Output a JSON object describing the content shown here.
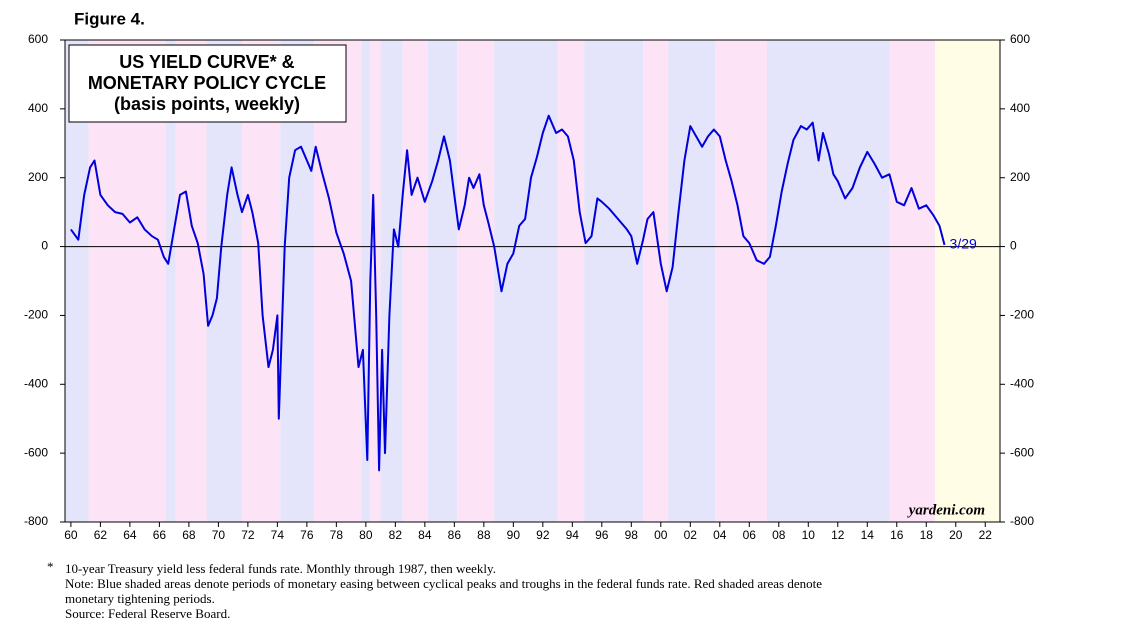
{
  "chart_data": {
    "type": "line",
    "figure_label": "Figure 4.",
    "title_lines": [
      "US YIELD CURVE* &",
      "MONETARY POLICY CYCLE",
      "(basis points, weekly)"
    ],
    "source_tag": "yardeni.com",
    "end_label": "3/29",
    "footnote_marker": "*",
    "footnote_lines": [
      "10-year Treasury yield less federal funds rate. Monthly through 1987, then weekly.",
      "Note: Blue shaded areas denote periods of monetary easing between cyclical peaks and troughs in the federal funds rate. Red shaded areas denote",
      "monetary tightening periods.",
      "Source: Federal Reserve Board."
    ],
    "xlim": [
      1959.6,
      2023
    ],
    "xticks": [
      {
        "value": 1960,
        "label": "60"
      },
      {
        "value": 1962,
        "label": "62"
      },
      {
        "value": 1964,
        "label": "64"
      },
      {
        "value": 1966,
        "label": "66"
      },
      {
        "value": 1968,
        "label": "68"
      },
      {
        "value": 1970,
        "label": "70"
      },
      {
        "value": 1972,
        "label": "72"
      },
      {
        "value": 1974,
        "label": "74"
      },
      {
        "value": 1976,
        "label": "76"
      },
      {
        "value": 1978,
        "label": "78"
      },
      {
        "value": 1980,
        "label": "80"
      },
      {
        "value": 1982,
        "label": "82"
      },
      {
        "value": 1984,
        "label": "84"
      },
      {
        "value": 1986,
        "label": "86"
      },
      {
        "value": 1988,
        "label": "88"
      },
      {
        "value": 1990,
        "label": "90"
      },
      {
        "value": 1992,
        "label": "92"
      },
      {
        "value": 1994,
        "label": "94"
      },
      {
        "value": 1996,
        "label": "96"
      },
      {
        "value": 1998,
        "label": "98"
      },
      {
        "value": 2000,
        "label": "00"
      },
      {
        "value": 2002,
        "label": "02"
      },
      {
        "value": 2004,
        "label": "04"
      },
      {
        "value": 2006,
        "label": "06"
      },
      {
        "value": 2008,
        "label": "08"
      },
      {
        "value": 2010,
        "label": "10"
      },
      {
        "value": 2012,
        "label": "12"
      },
      {
        "value": 2014,
        "label": "14"
      },
      {
        "value": 2016,
        "label": "16"
      },
      {
        "value": 2018,
        "label": "18"
      },
      {
        "value": 2020,
        "label": "20"
      },
      {
        "value": 2022,
        "label": "22"
      }
    ],
    "ylim": [
      -800,
      600
    ],
    "yticks": [
      -800,
      -600,
      -400,
      -200,
      0,
      200,
      400,
      600
    ],
    "reference_line": 0,
    "easing_color": "#e4e4fa",
    "tightening_color": "#fce4f6",
    "future_color": "#fffde6",
    "easing_periods": [
      [
        1959.6,
        1961.2
      ],
      [
        1966.4,
        1967.1
      ],
      [
        1969.2,
        1971.6
      ],
      [
        1974.2,
        1976.5
      ],
      [
        1979.7,
        1980.3
      ],
      [
        1981.0,
        1982.5
      ],
      [
        1984.2,
        1986.2
      ],
      [
        1988.7,
        1993.0
      ],
      [
        1994.8,
        1998.8
      ],
      [
        2000.5,
        2003.7
      ],
      [
        2007.2,
        2015.5
      ]
    ],
    "tightening_periods": [
      [
        1961.2,
        1966.4
      ],
      [
        1967.1,
        1969.2
      ],
      [
        1971.6,
        1974.2
      ],
      [
        1976.5,
        1979.7
      ],
      [
        1980.3,
        1981.0
      ],
      [
        1982.5,
        1984.2
      ],
      [
        1986.2,
        1988.7
      ],
      [
        1993.0,
        1994.8
      ],
      [
        1998.8,
        2000.5
      ],
      [
        2003.7,
        2007.2
      ],
      [
        2015.5,
        2018.6
      ]
    ],
    "future_period": [
      2018.6,
      2023
    ],
    "series": [
      {
        "color": "#0000dd",
        "x": [
          1960.0,
          1960.5,
          1960.9,
          1961.3,
          1961.6,
          1962.0,
          1962.5,
          1963.0,
          1963.5,
          1964.0,
          1964.5,
          1965.0,
          1965.5,
          1965.9,
          1966.3,
          1966.6,
          1967.0,
          1967.4,
          1967.8,
          1968.2,
          1968.6,
          1969.0,
          1969.3,
          1969.6,
          1969.9,
          1970.2,
          1970.6,
          1970.9,
          1971.3,
          1971.6,
          1972.0,
          1972.3,
          1972.7,
          1973.0,
          1973.4,
          1973.7,
          1974.0,
          1974.1,
          1974.5,
          1974.8,
          1975.2,
          1975.6,
          1976.0,
          1976.3,
          1976.6,
          1977.0,
          1977.5,
          1978.0,
          1978.5,
          1979.0,
          1979.5,
          1979.8,
          1980.1,
          1980.3,
          1980.5,
          1980.7,
          1980.9,
          1981.1,
          1981.3,
          1981.6,
          1981.9,
          1982.2,
          1982.5,
          1982.8,
          1983.1,
          1983.5,
          1984.0,
          1984.5,
          1984.9,
          1985.3,
          1985.7,
          1986.0,
          1986.3,
          1986.7,
          1987.0,
          1987.3,
          1987.7,
          1988.0,
          1988.3,
          1988.7,
          1989.2,
          1989.6,
          1990.0,
          1990.4,
          1990.8,
          1991.2,
          1991.6,
          1992.0,
          1992.4,
          1992.9,
          1993.3,
          1993.7,
          1994.1,
          1994.5,
          1994.9,
          1995.3,
          1995.7,
          1996.0,
          1996.5,
          1996.9,
          1997.3,
          1997.7,
          1998.0,
          1998.4,
          1998.8,
          1999.1,
          1999.5,
          2000.0,
          2000.4,
          2000.8,
          2001.2,
          2001.6,
          2002.0,
          2002.4,
          2002.8,
          2003.2,
          2003.6,
          2004.0,
          2004.4,
          2004.8,
          2005.2,
          2005.6,
          2006.0,
          2006.5,
          2007.0,
          2007.4,
          2007.8,
          2008.2,
          2008.6,
          2009.0,
          2009.5,
          2009.9,
          2010.3,
          2010.7,
          2011.0,
          2011.4,
          2011.7,
          2012.0,
          2012.5,
          2013.0,
          2013.5,
          2014.0,
          2014.5,
          2015.0,
          2015.5,
          2016.0,
          2016.5,
          2017.0,
          2017.5,
          2018.0,
          2018.5,
          2018.9,
          2019.24
        ],
        "values": [
          50,
          20,
          150,
          230,
          250,
          150,
          120,
          100,
          95,
          70,
          85,
          50,
          30,
          20,
          -30,
          -50,
          50,
          150,
          160,
          60,
          10,
          -80,
          -230,
          -200,
          -150,
          0,
          150,
          230,
          150,
          100,
          150,
          100,
          10,
          -200,
          -350,
          -300,
          -200,
          -500,
          0,
          200,
          280,
          290,
          250,
          220,
          290,
          220,
          140,
          40,
          -20,
          -100,
          -350,
          -300,
          -620,
          -100,
          150,
          -200,
          -650,
          -300,
          -600,
          -200,
          50,
          0,
          150,
          280,
          150,
          200,
          130,
          190,
          250,
          320,
          250,
          150,
          50,
          120,
          200,
          170,
          210,
          120,
          70,
          0,
          -130,
          -50,
          -20,
          60,
          80,
          200,
          260,
          330,
          380,
          330,
          340,
          320,
          250,
          100,
          10,
          30,
          140,
          130,
          110,
          90,
          70,
          50,
          30,
          -50,
          20,
          80,
          100,
          -50,
          -130,
          -60,
          100,
          250,
          350,
          320,
          290,
          320,
          340,
          320,
          250,
          190,
          120,
          30,
          10,
          -40,
          -50,
          -30,
          60,
          160,
          240,
          310,
          350,
          340,
          360,
          250,
          330,
          270,
          210,
          190,
          140,
          170,
          230,
          275,
          240,
          200,
          210,
          130,
          120,
          170,
          110,
          120,
          90,
          60,
          5
        ]
      }
    ]
  }
}
